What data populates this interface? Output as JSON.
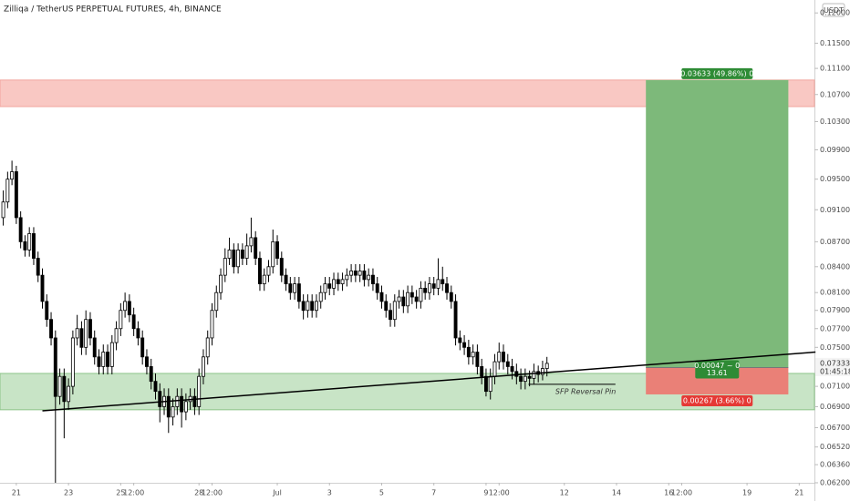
{
  "chart_data": {
    "type": "candlestick",
    "title": "Zilliqa / TetherUS PERPETUAL FUTURES, 4h, BINANCE",
    "currency": "USDT",
    "log_scale": true,
    "up_color": "#ffffff",
    "down_color": "#000000",
    "wick_color": "#000000",
    "xlim": [
      -15,
      734
    ],
    "xticks": [
      {
        "value": 0,
        "label": "21"
      },
      {
        "value": 48,
        "label": "23"
      },
      {
        "value": 96,
        "label": "25"
      },
      {
        "value": 108,
        "label": "12:00"
      },
      {
        "value": 168,
        "label": "28"
      },
      {
        "value": 180,
        "label": "12:00"
      },
      {
        "value": 240,
        "label": "Jul"
      },
      {
        "value": 288,
        "label": "3"
      },
      {
        "value": 336,
        "label": "5"
      },
      {
        "value": 384,
        "label": "7"
      },
      {
        "value": 432,
        "label": "9"
      },
      {
        "value": 444,
        "label": "12:00"
      },
      {
        "value": 504,
        "label": "12"
      },
      {
        "value": 552,
        "label": "14"
      },
      {
        "value": 600,
        "label": "16"
      },
      {
        "value": 612,
        "label": "12:00"
      },
      {
        "value": 672,
        "label": "19"
      },
      {
        "value": 720,
        "label": "21"
      }
    ],
    "ylim": [
      0.062,
      0.1222
    ],
    "yticks": [
      {
        "value": 0.12,
        "label": "0.12000"
      },
      {
        "value": 0.115,
        "label": "0.11500"
      },
      {
        "value": 0.111,
        "label": "0.11100"
      },
      {
        "value": 0.107,
        "label": "0.10700"
      },
      {
        "value": 0.103,
        "label": "0.10300"
      },
      {
        "value": 0.099,
        "label": "0.09900"
      },
      {
        "value": 0.095,
        "label": "0.09500"
      },
      {
        "value": 0.091,
        "label": "0.09100"
      },
      {
        "value": 0.087,
        "label": "0.08700"
      },
      {
        "value": 0.084,
        "label": "0.08400"
      },
      {
        "value": 0.081,
        "label": "0.08100"
      },
      {
        "value": 0.079,
        "label": "0.07900"
      },
      {
        "value": 0.077,
        "label": "0.07700"
      },
      {
        "value": 0.075,
        "label": "0.07500"
      },
      {
        "value": 0.071,
        "label": "0.07100"
      },
      {
        "value": 0.069,
        "label": "0.06900"
      },
      {
        "value": 0.067,
        "label": "0.06700"
      },
      {
        "value": 0.0652,
        "label": "0.06520"
      },
      {
        "value": 0.0636,
        "label": "0.06360"
      },
      {
        "value": 0.062,
        "label": "0.06200"
      }
    ],
    "last_price": 0.07333,
    "countdown": "01:45:18",
    "x": [
      -12,
      -8,
      -4,
      0,
      4,
      8,
      12,
      16,
      20,
      24,
      28,
      32,
      36,
      40,
      44,
      48,
      52,
      56,
      60,
      64,
      68,
      72,
      76,
      80,
      84,
      88,
      92,
      96,
      100,
      104,
      108,
      112,
      116,
      120,
      124,
      128,
      132,
      136,
      140,
      144,
      148,
      152,
      156,
      160,
      164,
      168,
      172,
      176,
      180,
      184,
      188,
      192,
      196,
      200,
      204,
      208,
      212,
      216,
      220,
      224,
      228,
      232,
      236,
      240,
      244,
      248,
      252,
      256,
      260,
      264,
      268,
      272,
      276,
      280,
      284,
      288,
      292,
      296,
      300,
      304,
      308,
      312,
      316,
      320,
      324,
      328,
      332,
      336,
      340,
      344,
      348,
      352,
      356,
      360,
      364,
      368,
      372,
      376,
      380,
      384,
      388,
      392,
      396,
      400,
      404,
      408,
      412,
      416,
      420,
      424,
      428,
      432,
      436,
      440,
      444,
      448,
      452,
      456,
      460,
      464,
      468,
      472,
      476,
      480,
      484,
      488
    ],
    "ohlc": [
      [
        0.09,
        0.0935,
        0.089,
        0.092
      ],
      [
        0.092,
        0.096,
        0.0912,
        0.095
      ],
      [
        0.095,
        0.0975,
        0.0942,
        0.096
      ],
      [
        0.096,
        0.0968,
        0.0892,
        0.09
      ],
      [
        0.09,
        0.0908,
        0.0862,
        0.087
      ],
      [
        0.087,
        0.0878,
        0.0852,
        0.086
      ],
      [
        0.086,
        0.0888,
        0.0852,
        0.088
      ],
      [
        0.088,
        0.0888,
        0.0842,
        0.085
      ],
      [
        0.085,
        0.0858,
        0.0822,
        0.083
      ],
      [
        0.083,
        0.0838,
        0.0792,
        0.08
      ],
      [
        0.08,
        0.0808,
        0.0772,
        0.078
      ],
      [
        0.078,
        0.0788,
        0.0752,
        0.076
      ],
      [
        0.076,
        0.0768,
        0.062,
        0.07
      ],
      [
        0.07,
        0.0728,
        0.0692,
        0.072
      ],
      [
        0.072,
        0.0728,
        0.066,
        0.0695
      ],
      [
        0.0695,
        0.0718,
        0.0687,
        0.071
      ],
      [
        0.071,
        0.0768,
        0.0702,
        0.076
      ],
      [
        0.076,
        0.0785,
        0.0752,
        0.077
      ],
      [
        0.077,
        0.0778,
        0.0742,
        0.075
      ],
      [
        0.075,
        0.079,
        0.0742,
        0.078
      ],
      [
        0.078,
        0.0788,
        0.0752,
        0.076
      ],
      [
        0.076,
        0.0768,
        0.0732,
        0.074
      ],
      [
        0.074,
        0.0748,
        0.0722,
        0.073
      ],
      [
        0.073,
        0.0753,
        0.0722,
        0.0745
      ],
      [
        0.0745,
        0.0753,
        0.0722,
        0.073
      ],
      [
        0.073,
        0.0763,
        0.0722,
        0.0755
      ],
      [
        0.0755,
        0.0778,
        0.0747,
        0.077
      ],
      [
        0.077,
        0.0798,
        0.0762,
        0.079
      ],
      [
        0.079,
        0.081,
        0.0782,
        0.08
      ],
      [
        0.08,
        0.0808,
        0.0777,
        0.0785
      ],
      [
        0.0785,
        0.0793,
        0.0762,
        0.077
      ],
      [
        0.077,
        0.0778,
        0.0752,
        0.076
      ],
      [
        0.076,
        0.0768,
        0.0732,
        0.074
      ],
      [
        0.074,
        0.0748,
        0.0722,
        0.073
      ],
      [
        0.073,
        0.0738,
        0.0707,
        0.0715
      ],
      [
        0.0715,
        0.0723,
        0.0697,
        0.0705
      ],
      [
        0.0705,
        0.0713,
        0.0675,
        0.069
      ],
      [
        0.069,
        0.0708,
        0.0682,
        0.07
      ],
      [
        0.07,
        0.0708,
        0.0665,
        0.068
      ],
      [
        0.068,
        0.0698,
        0.0672,
        0.069
      ],
      [
        0.069,
        0.0708,
        0.0682,
        0.07
      ],
      [
        0.07,
        0.0708,
        0.067,
        0.0685
      ],
      [
        0.0685,
        0.0703,
        0.0677,
        0.0695
      ],
      [
        0.0695,
        0.0708,
        0.0687,
        0.07
      ],
      [
        0.07,
        0.0708,
        0.0682,
        0.069
      ],
      [
        0.069,
        0.0728,
        0.0682,
        0.072
      ],
      [
        0.072,
        0.0748,
        0.0712,
        0.074
      ],
      [
        0.074,
        0.0768,
        0.0732,
        0.076
      ],
      [
        0.076,
        0.0798,
        0.0752,
        0.079
      ],
      [
        0.079,
        0.0818,
        0.0782,
        0.081
      ],
      [
        0.081,
        0.0838,
        0.0802,
        0.083
      ],
      [
        0.083,
        0.0862,
        0.0822,
        0.085
      ],
      [
        0.085,
        0.0875,
        0.0842,
        0.086
      ],
      [
        0.086,
        0.0868,
        0.0832,
        0.084
      ],
      [
        0.084,
        0.0868,
        0.0832,
        0.086
      ],
      [
        0.086,
        0.0868,
        0.0842,
        0.085
      ],
      [
        0.085,
        0.088,
        0.0842,
        0.0865
      ],
      [
        0.0865,
        0.09,
        0.0857,
        0.0875
      ],
      [
        0.0875,
        0.0883,
        0.0842,
        0.085
      ],
      [
        0.085,
        0.0858,
        0.0812,
        0.082
      ],
      [
        0.082,
        0.0838,
        0.0812,
        0.083
      ],
      [
        0.083,
        0.0848,
        0.0822,
        0.084
      ],
      [
        0.084,
        0.0885,
        0.0832,
        0.087
      ],
      [
        0.087,
        0.0878,
        0.0842,
        0.085
      ],
      [
        0.085,
        0.0858,
        0.0822,
        0.083
      ],
      [
        0.083,
        0.0838,
        0.0812,
        0.082
      ],
      [
        0.082,
        0.0828,
        0.0802,
        0.081
      ],
      [
        0.081,
        0.0828,
        0.0802,
        0.082
      ],
      [
        0.082,
        0.0828,
        0.0792,
        0.08
      ],
      [
        0.08,
        0.0808,
        0.078,
        0.079
      ],
      [
        0.079,
        0.0808,
        0.0782,
        0.08
      ],
      [
        0.08,
        0.0808,
        0.0782,
        0.079
      ],
      [
        0.079,
        0.0808,
        0.0782,
        0.08
      ],
      [
        0.08,
        0.0818,
        0.0792,
        0.081
      ],
      [
        0.081,
        0.0828,
        0.0802,
        0.082
      ],
      [
        0.082,
        0.0828,
        0.0807,
        0.0815
      ],
      [
        0.0815,
        0.0833,
        0.0807,
        0.0825
      ],
      [
        0.0825,
        0.0833,
        0.0812,
        0.082
      ],
      [
        0.082,
        0.0833,
        0.0812,
        0.0825
      ],
      [
        0.0825,
        0.0838,
        0.0817,
        0.083
      ],
      [
        0.083,
        0.0843,
        0.0822,
        0.0835
      ],
      [
        0.0835,
        0.0843,
        0.0822,
        0.083
      ],
      [
        0.083,
        0.0843,
        0.0822,
        0.0835
      ],
      [
        0.0835,
        0.0843,
        0.0817,
        0.0825
      ],
      [
        0.0825,
        0.0838,
        0.0817,
        0.083
      ],
      [
        0.083,
        0.0838,
        0.0812,
        0.082
      ],
      [
        0.082,
        0.0828,
        0.0802,
        0.081
      ],
      [
        0.081,
        0.0818,
        0.0792,
        0.08
      ],
      [
        0.08,
        0.0808,
        0.0782,
        0.079
      ],
      [
        0.079,
        0.0798,
        0.0772,
        0.078
      ],
      [
        0.078,
        0.0808,
        0.0772,
        0.08
      ],
      [
        0.08,
        0.0813,
        0.0792,
        0.0805
      ],
      [
        0.0805,
        0.0813,
        0.0787,
        0.0795
      ],
      [
        0.0795,
        0.0818,
        0.0787,
        0.081
      ],
      [
        0.081,
        0.0818,
        0.0797,
        0.0805
      ],
      [
        0.0805,
        0.0813,
        0.0792,
        0.08
      ],
      [
        0.08,
        0.0823,
        0.0792,
        0.0815
      ],
      [
        0.0815,
        0.0823,
        0.0802,
        0.081
      ],
      [
        0.081,
        0.0828,
        0.0802,
        0.082
      ],
      [
        0.082,
        0.0828,
        0.0807,
        0.0815
      ],
      [
        0.0815,
        0.085,
        0.0807,
        0.0825
      ],
      [
        0.0825,
        0.084,
        0.0812,
        0.082
      ],
      [
        0.082,
        0.0828,
        0.0802,
        0.081
      ],
      [
        0.081,
        0.0818,
        0.0792,
        0.08
      ],
      [
        0.08,
        0.0808,
        0.0752,
        0.076
      ],
      [
        0.076,
        0.0768,
        0.0747,
        0.0755
      ],
      [
        0.0755,
        0.0763,
        0.0742,
        0.075
      ],
      [
        0.075,
        0.0758,
        0.0732,
        0.074
      ],
      [
        0.074,
        0.0753,
        0.0732,
        0.0745
      ],
      [
        0.0745,
        0.0753,
        0.0722,
        0.073
      ],
      [
        0.073,
        0.0738,
        0.0712,
        0.072
      ],
      [
        0.072,
        0.0728,
        0.07,
        0.0705
      ],
      [
        0.0705,
        0.0728,
        0.0697,
        0.072
      ],
      [
        0.072,
        0.0743,
        0.0712,
        0.0735
      ],
      [
        0.0735,
        0.0755,
        0.0727,
        0.0745
      ],
      [
        0.0745,
        0.0753,
        0.0727,
        0.0735
      ],
      [
        0.0735,
        0.0743,
        0.0722,
        0.073
      ],
      [
        0.073,
        0.0738,
        0.0717,
        0.0725
      ],
      [
        0.0725,
        0.0733,
        0.0712,
        0.072
      ],
      [
        0.072,
        0.0728,
        0.0707,
        0.0715
      ],
      [
        0.0715,
        0.0728,
        0.0707,
        0.072
      ],
      [
        0.072,
        0.0726,
        0.071,
        0.0718
      ],
      [
        0.0718,
        0.0733,
        0.0712,
        0.0725
      ],
      [
        0.0725,
        0.0731,
        0.0714,
        0.0722
      ],
      [
        0.0722,
        0.0736,
        0.0716,
        0.0728
      ],
      [
        0.0728,
        0.074,
        0.072,
        0.07333
      ]
    ],
    "zones": [
      {
        "color": "#f9c8c3",
        "border": "#f2a59d",
        "from": 0.1052,
        "to": 0.1092
      },
      {
        "color": "#c8e4c6",
        "border": "#8cc488",
        "from": 0.0687,
        "to": 0.0723
      }
    ],
    "trendline": {
      "x": [
        24,
        735
      ],
      "y": [
        0.0686,
        0.0745
      ],
      "color": "#000000"
    },
    "annotation": {
      "text": "SFP Reversal Pin",
      "x": [
        471,
        551
      ],
      "y": 0.0712
    },
    "position": {
      "x": [
        579,
        710
      ],
      "entry": 0.0729,
      "target": 0.1092,
      "stop": 0.0702,
      "target_color": "#7db97a",
      "stop_color": "#ea8077",
      "target_label": "0.03633 (49.86%) 0",
      "entry_label": "0.00047 ~ 0",
      "entry_label2": "13.61",
      "stop_label": "0.00267 (3.66%) 0"
    }
  }
}
